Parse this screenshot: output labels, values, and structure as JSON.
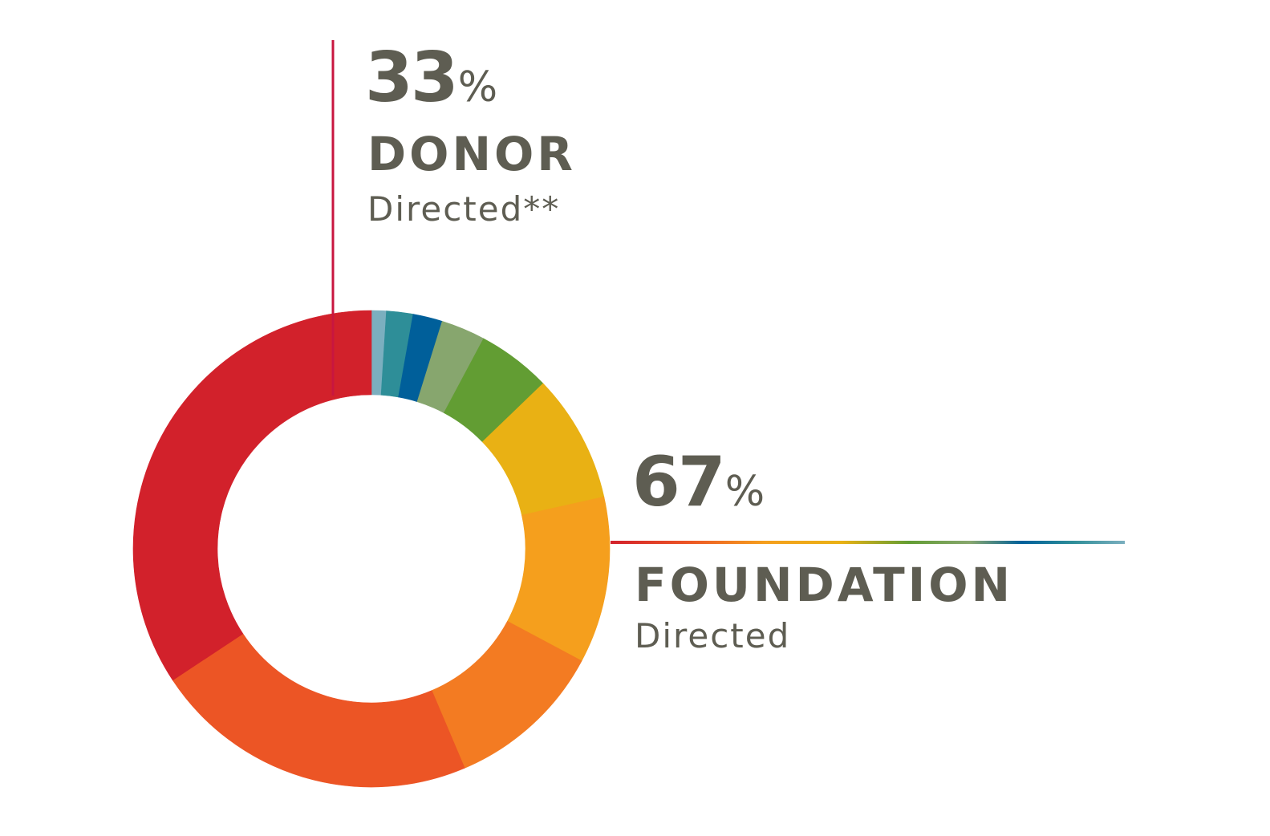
{
  "chart_data": {
    "type": "pie",
    "donut": true,
    "title": "",
    "slices": [
      {
        "value": 1.0,
        "color": "#7bafbf"
      },
      {
        "value": 1.8,
        "color": "#2e8e98"
      },
      {
        "value": 2.0,
        "color": "#005f9a"
      },
      {
        "value": 3.0,
        "color": "#87a66e"
      },
      {
        "value": 5.0,
        "color": "#629d33"
      },
      {
        "value": 8.7,
        "color": "#e9b114"
      },
      {
        "value": 11.3,
        "color": "#f59f1d"
      },
      {
        "value": 10.8,
        "color": "#f37b22"
      },
      {
        "value": 22.1,
        "color": "#ec5525"
      },
      {
        "value": 34.3,
        "color": "#d2212b"
      }
    ],
    "groups": [
      {
        "percent": "33",
        "sign": "%",
        "name": "DONOR",
        "sub": "Directed**",
        "line_color": "#c8163f"
      },
      {
        "percent": "67",
        "sign": "%",
        "name": "FOUNDATION",
        "sub": "Directed"
      }
    ]
  }
}
